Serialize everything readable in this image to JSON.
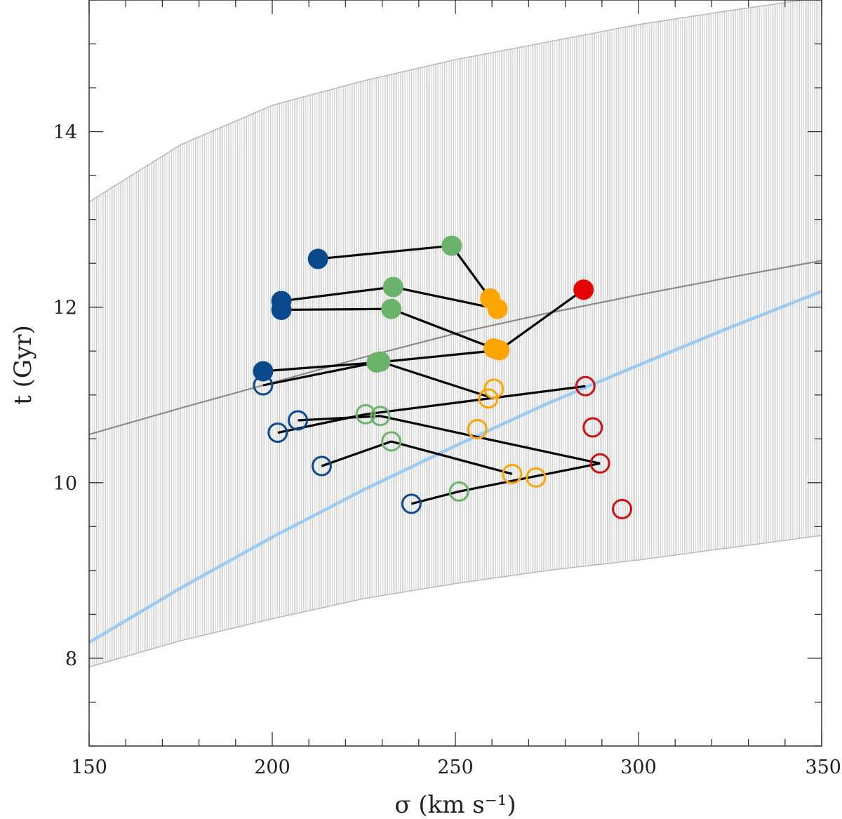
{
  "chart_data": {
    "type": "scatter",
    "title": "",
    "xlabel": "σ (km s⁻¹)",
    "ylabel": "t (Gyr)",
    "xlim": [
      150,
      350
    ],
    "ylim": [
      7,
      15.5
    ],
    "x_ticks": [
      150,
      200,
      250,
      300,
      350
    ],
    "y_ticks": [
      8,
      10,
      12,
      14
    ],
    "grid": false,
    "band": {
      "name": "uncertainty-band",
      "x": [
        150,
        175,
        200,
        225,
        250,
        275,
        300,
        325,
        350
      ],
      "lower": [
        7.9,
        8.2,
        8.45,
        8.68,
        8.85,
        9.0,
        9.12,
        9.26,
        9.4
      ],
      "upper": [
        13.2,
        13.85,
        14.3,
        14.58,
        14.82,
        15.02,
        15.22,
        15.38,
        15.53
      ],
      "color": "#c4c4c4"
    },
    "curves": [
      {
        "name": "mean relation",
        "x": [
          150,
          175,
          200,
          225,
          250,
          275,
          300,
          325,
          350
        ],
        "y": [
          10.55,
          10.85,
          11.14,
          11.43,
          11.7,
          11.93,
          12.14,
          12.34,
          12.53
        ],
        "color": "#8a8a8a"
      },
      {
        "name": "fit relation",
        "x": [
          150,
          175,
          200,
          225,
          250,
          275,
          300,
          325,
          350
        ],
        "y": [
          8.18,
          8.8,
          9.38,
          9.92,
          10.42,
          10.9,
          11.34,
          11.77,
          12.18
        ],
        "color": "#9ccbf2"
      }
    ],
    "series": [
      {
        "name": "filled-blue",
        "color": "#0a4a8c",
        "filled": true,
        "points": [
          [
            212.5,
            12.55
          ],
          [
            202.5,
            12.07
          ],
          [
            202.5,
            11.97
          ],
          [
            197.5,
            11.27
          ]
        ]
      },
      {
        "name": "filled-green",
        "color": "#6bb26b",
        "filled": true,
        "points": [
          [
            249,
            12.7
          ],
          [
            233,
            12.23
          ],
          [
            232.5,
            11.98
          ],
          [
            229.5,
            11.38
          ],
          [
            228.5,
            11.37
          ]
        ]
      },
      {
        "name": "filled-orange",
        "color": "#ffa500",
        "filled": true,
        "points": [
          [
            259.5,
            12.1
          ],
          [
            261.5,
            11.98
          ],
          [
            260.5,
            11.53
          ],
          [
            262,
            11.51
          ]
        ]
      },
      {
        "name": "filled-red",
        "color": "#e60000",
        "filled": true,
        "points": [
          [
            285,
            12.2
          ]
        ]
      },
      {
        "name": "open-blue",
        "color": "#0a4a8c",
        "filled": false,
        "points": [
          [
            197.5,
            11.11
          ],
          [
            201.5,
            10.57
          ],
          [
            207,
            10.71
          ],
          [
            213.5,
            10.19
          ],
          [
            238,
            9.76
          ]
        ]
      },
      {
        "name": "open-green",
        "color": "#6bb26b",
        "filled": false,
        "points": [
          [
            225.5,
            10.78
          ],
          [
            229.5,
            10.76
          ],
          [
            232.5,
            10.47
          ],
          [
            251,
            9.9
          ]
        ]
      },
      {
        "name": "open-orange",
        "color": "#ffa500",
        "filled": false,
        "points": [
          [
            260.5,
            11.07
          ],
          [
            259,
            10.96
          ],
          [
            256,
            10.61
          ],
          [
            265.5,
            10.1
          ],
          [
            272,
            10.06
          ]
        ]
      },
      {
        "name": "open-red",
        "color": "#cc1111",
        "filled": false,
        "points": [
          [
            285.5,
            11.1
          ],
          [
            287.5,
            10.63
          ],
          [
            289.5,
            10.22
          ],
          [
            295.5,
            9.7
          ]
        ]
      }
    ],
    "connections": [
      [
        [
          212.5,
          12.55
        ],
        [
          249,
          12.7
        ]
      ],
      [
        [
          249,
          12.7
        ],
        [
          259.5,
          12.1
        ]
      ],
      [
        [
          202.5,
          12.07
        ],
        [
          233,
          12.23
        ]
      ],
      [
        [
          233,
          12.23
        ],
        [
          261.5,
          11.98
        ]
      ],
      [
        [
          202.5,
          11.97
        ],
        [
          232.5,
          11.98
        ]
      ],
      [
        [
          232.5,
          11.98
        ],
        [
          260.5,
          11.53
        ]
      ],
      [
        [
          197.5,
          11.27
        ],
        [
          228.5,
          11.37
        ]
      ],
      [
        [
          228.5,
          11.37
        ],
        [
          262,
          11.51
        ]
      ],
      [
        [
          262,
          11.51
        ],
        [
          285,
          12.2
        ]
      ],
      [
        [
          197.5,
          11.11
        ],
        [
          229.5,
          11.38
        ]
      ],
      [
        [
          229.5,
          11.38
        ],
        [
          260.5,
          10.96
        ]
      ],
      [
        [
          201.5,
          10.57
        ],
        [
          225.5,
          10.78
        ]
      ],
      [
        [
          225.5,
          10.78
        ],
        [
          285.5,
          11.1
        ]
      ],
      [
        [
          207,
          10.71
        ],
        [
          229.5,
          10.76
        ]
      ],
      [
        [
          229.5,
          10.76
        ],
        [
          289.5,
          10.22
        ]
      ],
      [
        [
          213.5,
          10.19
        ],
        [
          232.5,
          10.47
        ]
      ],
      [
        [
          232.5,
          10.47
        ],
        [
          265.5,
          10.1
        ]
      ],
      [
        [
          238,
          9.76
        ],
        [
          251,
          9.9
        ]
      ],
      [
        [
          251,
          9.9
        ],
        [
          289.5,
          10.22
        ]
      ]
    ]
  }
}
